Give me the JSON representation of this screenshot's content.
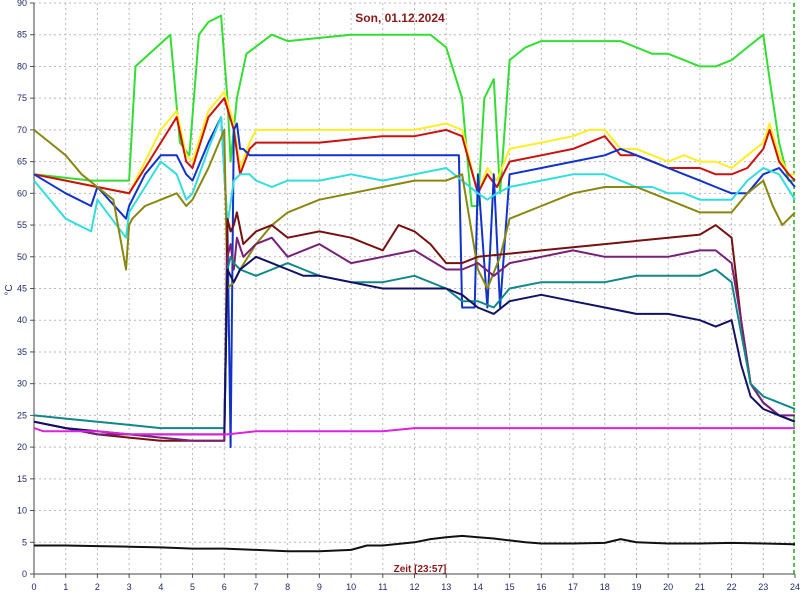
{
  "chart_data": {
    "type": "line",
    "title": "Son, 01.12.2024",
    "xlabel": "Zeit [23:57]",
    "ylabel": "°C",
    "xlim": [
      0,
      24
    ],
    "ylim": [
      0,
      90
    ],
    "x_ticks": [
      "0",
      "1",
      "2",
      "3",
      "4",
      "5",
      "6",
      "7",
      "8",
      "9",
      "10",
      "11",
      "12",
      "13",
      "14",
      "15",
      "16",
      "17",
      "18",
      "19",
      "20",
      "21",
      "22",
      "23",
      "24"
    ],
    "y_ticks": [
      "0",
      "5",
      "10",
      "15",
      "20",
      "25",
      "30",
      "35",
      "40",
      "45",
      "50",
      "55",
      "60",
      "65",
      "70",
      "75",
      "80",
      "85",
      "90"
    ],
    "grid": true,
    "series": [
      {
        "color": "#33dd33",
        "x": [
          0,
          1.8,
          2.9,
          3,
          3.2,
          4.3,
          4.6,
          4.9,
          5.2,
          5.5,
          5.9,
          6.1,
          6.2,
          6.4,
          6.7,
          7.5,
          8,
          9,
          10,
          11,
          12,
          12.5,
          13,
          13.5,
          13.8,
          14,
          14.2,
          14.5,
          14.7,
          15,
          15.5,
          16,
          17,
          18,
          18.5,
          19,
          19.5,
          20,
          20.5,
          21,
          21.5,
          22,
          22.5,
          23,
          23.2,
          23.5,
          23.8,
          24
        ],
        "y": [
          63,
          62,
          62,
          62,
          80,
          85,
          68,
          66,
          85,
          87,
          88,
          75,
          65,
          75,
          82,
          85,
          84,
          84.5,
          85,
          85,
          85,
          85,
          83,
          75,
          58,
          58,
          75,
          78,
          60,
          81,
          83,
          84,
          84,
          84,
          84,
          83,
          82,
          82,
          81,
          80,
          80,
          81,
          83,
          85,
          78,
          68,
          62,
          62
        ]
      },
      {
        "color": "#ffee22",
        "x": [
          0,
          1,
          2,
          3,
          3.5,
          4,
          4.5,
          4.8,
          5,
          5.5,
          6,
          6.3,
          6.5,
          6.8,
          7,
          8,
          9,
          10,
          11,
          12,
          13,
          13.5,
          14,
          14.3,
          14.6,
          15,
          16,
          17,
          17.5,
          18,
          18.5,
          19,
          19.5,
          20,
          20.5,
          21,
          21.5,
          22,
          22.5,
          23,
          23.2,
          23.5,
          23.8,
          24
        ],
        "y": [
          63,
          62,
          61,
          60,
          65,
          70,
          73,
          66,
          65,
          73,
          76,
          71,
          64,
          68,
          70,
          70,
          70,
          70,
          70,
          70,
          71,
          70,
          60,
          64,
          62,
          67,
          68,
          69,
          70,
          70,
          67,
          67,
          66,
          65,
          66,
          65,
          65,
          64,
          66,
          68,
          71,
          66,
          63,
          63
        ]
      },
      {
        "color": "#cc1111",
        "x": [
          0,
          1,
          2,
          3,
          3.5,
          4,
          4.5,
          4.8,
          5,
          5.5,
          6,
          6.3,
          6.5,
          6.8,
          7,
          8,
          9,
          10,
          11,
          12,
          13,
          13.5,
          14,
          14.3,
          14.6,
          15,
          16,
          17,
          17.5,
          18,
          18.5,
          19,
          19.5,
          20,
          20.5,
          21,
          21.5,
          22,
          22.5,
          23,
          23.2,
          23.5,
          23.8,
          24
        ],
        "y": [
          63,
          62,
          61,
          60,
          64,
          68,
          72,
          65,
          64,
          72,
          75,
          70,
          63,
          67,
          68,
          68,
          68,
          68.5,
          69,
          69,
          70,
          69,
          60,
          63,
          61,
          65,
          66,
          67,
          68,
          69,
          66,
          66,
          65,
          64,
          64,
          64,
          63,
          63,
          64,
          67,
          70,
          65,
          63,
          62
        ]
      },
      {
        "color": "#1133cc",
        "x": [
          0,
          1,
          1.8,
          2,
          2.9,
          3,
          3.5,
          4,
          4.5,
          4.8,
          5,
          5.5,
          5.9,
          6.1,
          6.2,
          6.3,
          6.4,
          6.5,
          6.6,
          6.8,
          7,
          8,
          9,
          10,
          11,
          12,
          13,
          13.4,
          13.5,
          13.9,
          14,
          14.3,
          14.5,
          14.7,
          15,
          16,
          17,
          18,
          18.5,
          19,
          19.5,
          20,
          20.5,
          21,
          21.5,
          22,
          22.5,
          23,
          23.5,
          24
        ],
        "y": [
          63,
          60,
          58,
          61,
          56,
          58,
          63,
          66,
          66,
          63,
          62,
          68,
          72,
          55,
          20,
          70,
          71,
          67,
          67,
          66,
          66,
          66,
          66,
          66,
          66,
          66,
          66,
          66,
          42,
          42,
          63,
          42,
          63,
          42,
          63,
          64,
          65,
          66,
          67,
          66,
          65,
          64,
          63,
          62,
          61,
          60,
          60,
          63,
          64,
          61
        ]
      },
      {
        "color": "#33dddd",
        "x": [
          0,
          1,
          1.8,
          2,
          2.9,
          3,
          3.5,
          4,
          4.5,
          4.8,
          5,
          5.5,
          5.9,
          6.1,
          6.3,
          6.5,
          6.8,
          7,
          7.5,
          8,
          9,
          10,
          11,
          12,
          13,
          13.5,
          14,
          14.3,
          14.6,
          15,
          16,
          17,
          18,
          18.5,
          19,
          19.5,
          20,
          20.5,
          21,
          21.5,
          22,
          22.5,
          23,
          23.5,
          24
        ],
        "y": [
          62,
          56,
          54,
          59,
          53,
          57,
          61,
          65,
          63,
          59,
          60,
          67,
          72,
          55,
          62,
          63,
          63,
          62,
          61,
          62,
          62,
          63,
          62,
          63,
          64,
          62,
          60,
          59,
          60,
          61,
          62,
          63,
          63,
          62,
          61,
          61,
          60,
          60,
          59,
          59,
          59,
          62,
          64,
          63,
          59
        ]
      },
      {
        "color": "#888811",
        "x": [
          0,
          0.5,
          1,
          1.5,
          2,
          2.5,
          2.9,
          3,
          3.1,
          3.5,
          4,
          4.5,
          4.8,
          5,
          5.5,
          6,
          6.1,
          6.3,
          6.5,
          7,
          7.5,
          8,
          9,
          10,
          11,
          12,
          13,
          13.5,
          14,
          14.3,
          14.7,
          15,
          16,
          17,
          18,
          18.5,
          19,
          19.5,
          20,
          21,
          22,
          22.5,
          23,
          23.3,
          23.6,
          24
        ],
        "y": [
          70,
          68,
          66,
          63,
          61,
          59,
          48,
          55,
          56,
          58,
          59,
          60,
          58,
          59,
          64,
          70,
          45,
          46,
          48,
          52,
          55,
          57,
          59,
          60,
          61,
          62,
          62,
          63,
          48,
          45,
          50,
          56,
          58,
          60,
          61,
          61,
          61,
          60,
          59,
          57,
          57,
          60,
          62,
          58,
          55,
          57
        ]
      },
      {
        "color": "#771111",
        "x": [
          0,
          1,
          2,
          3,
          4,
          5,
          5.9,
          6,
          6.1,
          6.2,
          6.3,
          6.4,
          6.6,
          7,
          7.5,
          8,
          9,
          10,
          10.5,
          11,
          11.5,
          12,
          12.5,
          13,
          13.5,
          14,
          15,
          16,
          17,
          18,
          19,
          20,
          21,
          21.5,
          22,
          22.3,
          22.6,
          23,
          23.5,
          24
        ],
        "y": [
          24,
          23,
          22,
          21.5,
          21,
          21,
          21,
          21,
          56,
          54,
          55,
          57,
          52,
          54,
          55,
          53,
          54,
          53,
          52,
          51,
          55,
          54,
          52,
          49,
          49,
          50,
          50.5,
          51,
          51.5,
          52,
          52.5,
          53,
          53.5,
          55,
          53,
          40,
          30,
          27,
          25,
          24
        ]
      },
      {
        "color": "#772277",
        "x": [
          0,
          1,
          2,
          3,
          4,
          5,
          5.9,
          6,
          6.1,
          6.2,
          6.3,
          6.4,
          6.6,
          7,
          7.5,
          8,
          8.5,
          9,
          10,
          11,
          12,
          13,
          13.5,
          14,
          14.5,
          15,
          16,
          17,
          18,
          19,
          20,
          21,
          21.5,
          22,
          22.3,
          22.6,
          23,
          23.5,
          24
        ],
        "y": [
          24,
          23,
          22,
          22,
          21.5,
          21,
          21,
          21,
          50,
          52,
          48,
          53,
          50,
          52,
          53,
          50,
          51,
          52,
          49,
          50,
          51,
          48,
          48,
          49,
          47,
          49,
          50,
          51,
          50,
          50,
          50,
          51,
          51,
          49,
          40,
          30,
          27,
          25,
          25
        ]
      },
      {
        "color": "#118888",
        "x": [
          0,
          1,
          2,
          3,
          4,
          5,
          5.9,
          6,
          6.1,
          6.2,
          6.3,
          6.5,
          7,
          7.5,
          8,
          8.5,
          9,
          10,
          11,
          12,
          13,
          13.5,
          14,
          14.5,
          15,
          16,
          17,
          18,
          19,
          20,
          21,
          21.5,
          22,
          22.3,
          22.6,
          23,
          23.5,
          24
        ],
        "y": [
          25,
          24.5,
          24,
          23.5,
          23,
          23,
          23,
          23,
          48,
          50,
          49,
          48,
          47,
          48,
          49,
          48,
          47,
          46,
          46,
          47,
          45,
          43,
          43,
          42,
          45,
          46,
          46,
          46,
          47,
          47,
          47,
          48,
          46,
          38,
          30,
          28,
          27,
          26
        ]
      },
      {
        "color": "#111166",
        "x": [
          0,
          1,
          2,
          3,
          4,
          5,
          5.9,
          6,
          6.1,
          6.2,
          6.3,
          6.5,
          7,
          7.5,
          8,
          8.5,
          9,
          10,
          11,
          12,
          13,
          13.5,
          14,
          14.5,
          15,
          16,
          17,
          18,
          19,
          20,
          21,
          21.5,
          22,
          22.3,
          22.6,
          23,
          23.5,
          24
        ],
        "y": [
          24,
          23,
          22.5,
          22,
          22,
          22,
          22,
          22,
          48,
          47,
          46,
          48,
          50,
          49,
          48,
          47,
          47,
          46,
          45,
          45,
          45,
          44,
          42,
          41,
          43,
          44,
          43,
          42,
          41,
          41,
          40,
          39,
          40,
          33,
          28,
          26,
          25,
          24
        ]
      },
      {
        "color": "#dd22dd",
        "x": [
          0,
          0.3,
          1,
          2,
          3,
          4,
          5,
          6,
          6.1,
          7,
          8,
          9,
          10,
          11,
          12,
          13,
          14,
          15,
          16,
          17,
          18,
          19,
          20,
          21,
          22,
          23,
          24
        ],
        "y": [
          23,
          22.5,
          22.5,
          22.5,
          22,
          22,
          22,
          22,
          22,
          22.5,
          22.5,
          22.5,
          22.5,
          22.5,
          23,
          23,
          23,
          23,
          23,
          23,
          23,
          23,
          23,
          23,
          23,
          23,
          23
        ]
      },
      {
        "color": "#111111",
        "x": [
          0,
          1,
          2,
          3,
          4,
          5,
          6,
          7,
          8,
          9,
          10,
          10.5,
          11,
          12,
          12.5,
          13,
          13.5,
          14,
          14.5,
          15,
          15.5,
          16,
          17,
          18,
          18.5,
          19,
          20,
          21,
          22,
          23,
          24
        ],
        "y": [
          4.5,
          4.5,
          4.4,
          4.3,
          4.2,
          4.0,
          4.0,
          3.8,
          3.6,
          3.6,
          3.8,
          4.5,
          4.5,
          5.0,
          5.5,
          5.8,
          6.0,
          5.8,
          5.6,
          5.3,
          5.0,
          4.8,
          4.8,
          4.9,
          5.5,
          5.0,
          4.8,
          4.8,
          4.9,
          4.8,
          4.7
        ]
      }
    ]
  }
}
